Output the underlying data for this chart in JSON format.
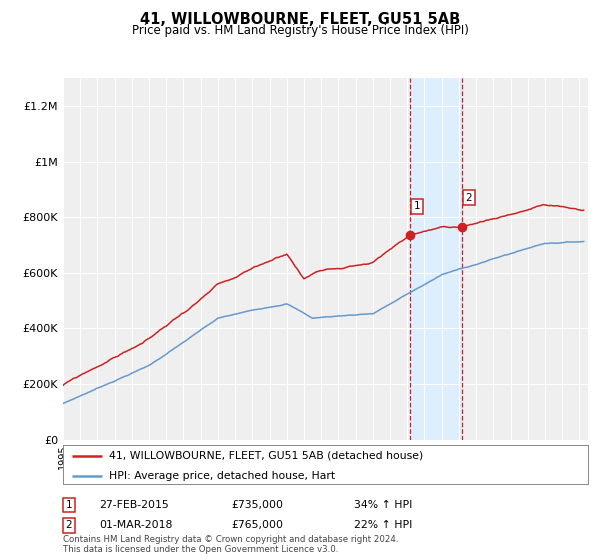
{
  "title": "41, WILLOWBOURNE, FLEET, GU51 5AB",
  "subtitle": "Price paid vs. HM Land Registry's House Price Index (HPI)",
  "ylim": [
    0,
    1300000
  ],
  "xlim_start": 1995.0,
  "xlim_end": 2025.5,
  "sale1_date": 2015.16,
  "sale1_price": 735000,
  "sale1_label": "1",
  "sale1_text": "27-FEB-2015",
  "sale1_amount": "£735,000",
  "sale1_hpi": "34% ↑ HPI",
  "sale2_date": 2018.17,
  "sale2_price": 765000,
  "sale2_label": "2",
  "sale2_text": "01-MAR-2018",
  "sale2_amount": "£765,000",
  "sale2_hpi": "22% ↑ HPI",
  "hpi_color": "#6699cc",
  "price_color": "#cc2222",
  "highlight_color": "#ddeeff",
  "background_color": "#efefef",
  "grid_color": "#ffffff",
  "legend_label_price": "41, WILLOWBOURNE, FLEET, GU51 5AB (detached house)",
  "legend_label_hpi": "HPI: Average price, detached house, Hart",
  "footer": "Contains HM Land Registry data © Crown copyright and database right 2024.\nThis data is licensed under the Open Government Licence v3.0.",
  "ytick_labels": [
    "£0",
    "£200K",
    "£400K",
    "£600K",
    "£800K",
    "£1M",
    "£1.2M"
  ],
  "ytick_values": [
    0,
    200000,
    400000,
    600000,
    800000,
    1000000,
    1200000
  ]
}
